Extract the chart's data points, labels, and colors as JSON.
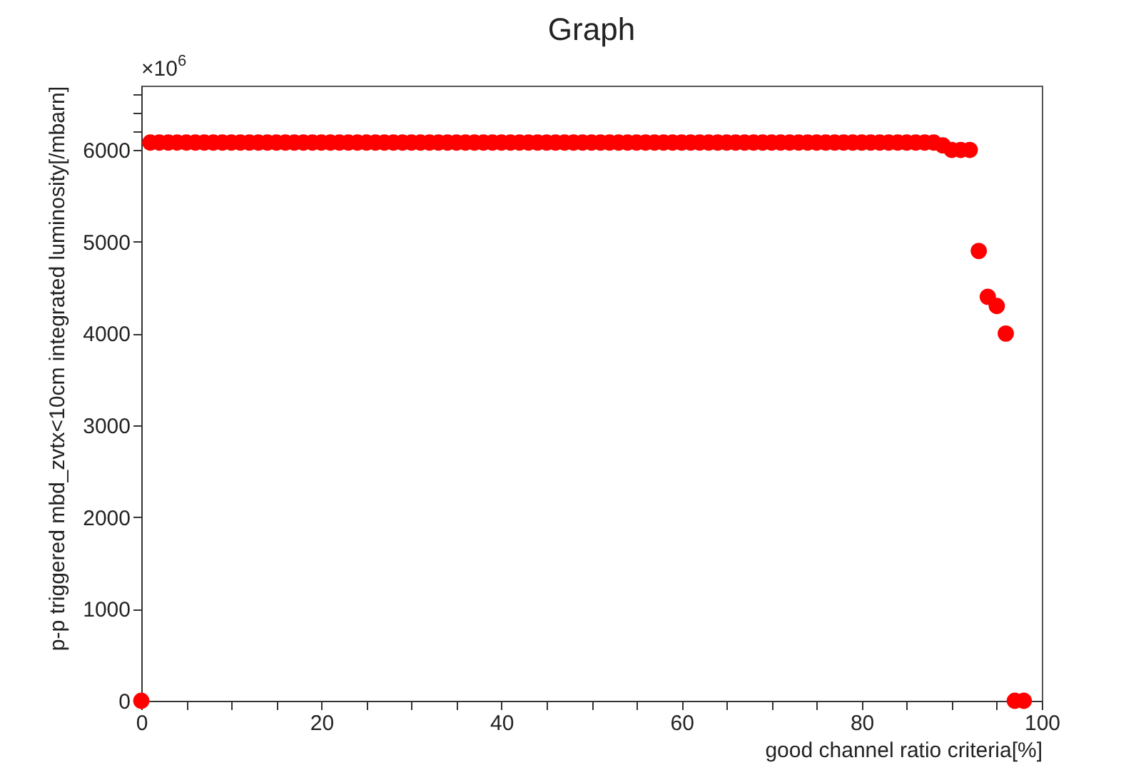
{
  "chart_data": {
    "type": "scatter",
    "title": "Graph",
    "xlabel": "good channel ratio criteria[%]",
    "ylabel": "p-p triggered  mbd_zvtx<10cm integrated luminosity[/mbarn]",
    "annotations": [
      "×10$^{6}$"
    ],
    "marker": "circle",
    "grid": false,
    "xlim": [
      0,
      100
    ],
    "ylim": [
      0,
      6700
    ],
    "xticks": [
      0,
      {
        "value": 5,
        "label": null
      },
      {
        "value": 10,
        "label": null
      },
      {
        "value": 15,
        "label": null
      },
      20,
      {
        "value": 25,
        "label": null
      },
      {
        "value": 30,
        "label": null
      },
      {
        "value": 35,
        "label": null
      },
      40,
      {
        "value": 45,
        "label": null
      },
      {
        "value": 50,
        "label": null
      },
      {
        "value": 55,
        "label": null
      },
      60,
      {
        "value": 65,
        "label": null
      },
      {
        "value": 70,
        "label": null
      },
      {
        "value": 75,
        "label": null
      },
      80,
      {
        "value": 85,
        "label": null
      },
      {
        "value": 90,
        "label": null
      },
      {
        "value": 95,
        "label": null
      },
      100
    ],
    "yticks": [
      0,
      1000,
      2000,
      3000,
      4000,
      5000,
      6000,
      {
        "value": 6200,
        "label": null
      },
      {
        "value": 6400,
        "label": null
      },
      {
        "value": 6600,
        "label": null
      }
    ],
    "x": [
      0,
      1,
      2,
      3,
      4,
      5,
      6,
      7,
      8,
      9,
      10,
      11,
      12,
      13,
      14,
      15,
      16,
      17,
      18,
      19,
      20,
      21,
      22,
      23,
      24,
      25,
      26,
      27,
      28,
      29,
      30,
      31,
      32,
      33,
      34,
      35,
      36,
      37,
      38,
      39,
      40,
      41,
      42,
      43,
      44,
      45,
      46,
      47,
      48,
      49,
      50,
      51,
      52,
      53,
      54,
      55,
      56,
      57,
      58,
      59,
      60,
      61,
      62,
      63,
      64,
      65,
      66,
      67,
      68,
      69,
      70,
      71,
      72,
      73,
      74,
      75,
      76,
      77,
      78,
      79,
      80,
      81,
      82,
      83,
      84,
      85,
      86,
      87,
      88,
      89,
      90,
      91,
      92,
      93,
      94,
      95,
      96,
      97,
      98
    ],
    "series": [
      {
        "color": "#ff0000",
        "values": [
          0,
          6080,
          6080,
          6080,
          6080,
          6080,
          6080,
          6080,
          6080,
          6080,
          6080,
          6080,
          6080,
          6080,
          6080,
          6080,
          6080,
          6080,
          6080,
          6080,
          6080,
          6080,
          6080,
          6080,
          6080,
          6080,
          6080,
          6080,
          6080,
          6080,
          6080,
          6080,
          6080,
          6080,
          6080,
          6080,
          6080,
          6080,
          6080,
          6080,
          6080,
          6080,
          6080,
          6080,
          6080,
          6080,
          6080,
          6080,
          6080,
          6080,
          6080,
          6080,
          6080,
          6080,
          6080,
          6080,
          6080,
          6080,
          6080,
          6080,
          6080,
          6080,
          6080,
          6080,
          6080,
          6080,
          6080,
          6080,
          6080,
          6080,
          6080,
          6080,
          6080,
          6080,
          6080,
          6080,
          6080,
          6080,
          6080,
          6080,
          6080,
          6080,
          6080,
          6080,
          6080,
          6080,
          6080,
          6080,
          6080,
          6050,
          6000,
          6000,
          6000,
          4900,
          4400,
          4300,
          4000,
          0,
          0
        ]
      }
    ]
  }
}
